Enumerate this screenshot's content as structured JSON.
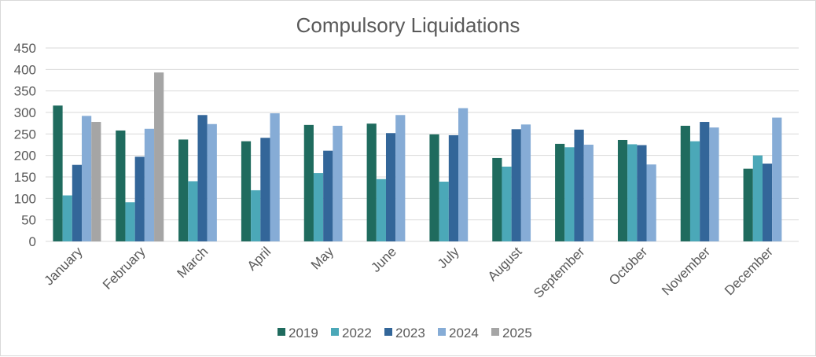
{
  "chart_data": {
    "type": "bar",
    "title": "Compulsory Liquidations",
    "xlabel": "",
    "ylabel": "",
    "ylim": [
      0,
      450
    ],
    "yticks": [
      0,
      50,
      100,
      150,
      200,
      250,
      300,
      350,
      400,
      450
    ],
    "grid": true,
    "legend_placement": "bottom",
    "categories": [
      "January",
      "February",
      "March",
      "April",
      "May",
      "June",
      "July",
      "August",
      "September",
      "October",
      "November",
      "December"
    ],
    "series": [
      {
        "name": "2019",
        "color": "#1f6b5e",
        "values": [
          316,
          258,
          237,
          233,
          271,
          274,
          249,
          194,
          227,
          236,
          269,
          169
        ]
      },
      {
        "name": "2022",
        "color": "#4ba8b8",
        "values": [
          107,
          91,
          140,
          119,
          159,
          145,
          139,
          174,
          219,
          226,
          233,
          200
        ]
      },
      {
        "name": "2023",
        "color": "#336699",
        "values": [
          178,
          197,
          294,
          241,
          211,
          252,
          247,
          261,
          260,
          224,
          278,
          181
        ]
      },
      {
        "name": "2024",
        "color": "#86acd6",
        "values": [
          292,
          262,
          273,
          298,
          269,
          294,
          310,
          272,
          225,
          179,
          265,
          288
        ]
      },
      {
        "name": "2025",
        "color": "#a5a5a5",
        "values": [
          278,
          393,
          null,
          null,
          null,
          null,
          null,
          null,
          null,
          null,
          null,
          null
        ]
      }
    ]
  }
}
